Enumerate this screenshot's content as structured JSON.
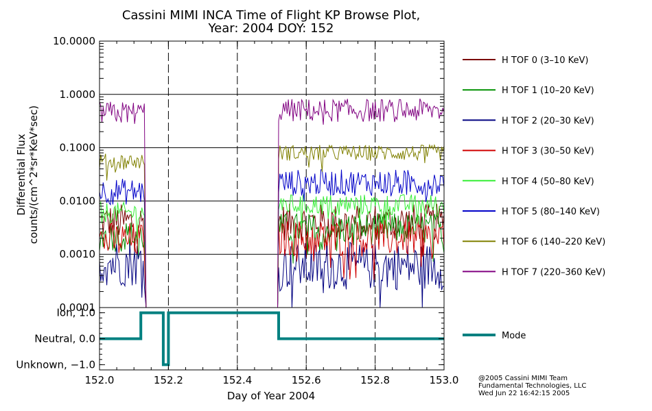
{
  "chart_data": {
    "type": "line",
    "title": "Cassini MIMI INCA Time of Flight KP Browse Plot,",
    "subtitle": "Year: 2004 DOY: 152",
    "xlabel": "Day of Year 2004",
    "xlim": [
      152.0,
      153.0
    ],
    "xticks": [
      "152.0",
      "152.2",
      "152.4",
      "152.6",
      "152.8",
      "153.0"
    ],
    "x_dashed_grid": [
      152.2,
      152.4,
      152.6,
      152.8
    ],
    "upper_panel": {
      "ylabel_line1": "Differential Flux",
      "ylabel_line2": "counts/(cm^2*sr*KeV*sec)",
      "yscale": "log",
      "ylim": [
        0.0001,
        10.0
      ],
      "yticks": [
        "10.0000",
        "1.0000",
        "0.1000",
        "0.0100",
        "0.0010",
        "0.0001"
      ],
      "grid": true,
      "data_gap": [
        152.13,
        152.52
      ],
      "series": [
        {
          "name": "H TOF 0 (3–10 KeV)",
          "color": "#7a0000",
          "level1": 0.004,
          "level2": 0.004,
          "spread": 0.35
        },
        {
          "name": "H TOF 1 (10–20 KeV)",
          "color": "#009000",
          "level1": 0.0022,
          "level2": 0.003,
          "spread": 0.3
        },
        {
          "name": "H TOF 2 (20–30 KeV)",
          "color": "#000080",
          "level1": 0.0007,
          "level2": 0.0006,
          "spread": 0.45
        },
        {
          "name": "H TOF 3 (30–50 KeV)",
          "color": "#d00000",
          "level1": 0.0018,
          "level2": 0.002,
          "spread": 0.35
        },
        {
          "name": "H TOF 4 (50–80 KeV)",
          "color": "#33ee33",
          "level1": 0.006,
          "level2": 0.0085,
          "spread": 0.2
        },
        {
          "name": "H TOF 5 (80–140 KeV)",
          "color": "#0000c8",
          "level1": 0.015,
          "level2": 0.022,
          "spread": 0.25
        },
        {
          "name": "H TOF 6 (140–220 KeV)",
          "color": "#808000",
          "level1": 0.055,
          "level2": 0.08,
          "spread": 0.15
        },
        {
          "name": "H TOF 7 (220–360 KeV)",
          "color": "#800080",
          "level1": 0.45,
          "level2": 0.5,
          "spread": 0.22
        }
      ]
    },
    "lower_panel": {
      "yticks": [
        "Ion, 1.0",
        "Neutral, 0.0",
        "Unknown, −1.0"
      ],
      "ylim": [
        -1.2,
        1.2
      ],
      "series": [
        {
          "name": "Mode",
          "color": "#008080",
          "x": [
            152.0,
            152.12,
            152.12,
            152.185,
            152.185,
            152.2,
            152.2,
            152.52,
            152.52,
            153.0
          ],
          "y": [
            0,
            0,
            1,
            1,
            -1,
            -1,
            1,
            1,
            0,
            0
          ]
        }
      ]
    }
  },
  "footer": {
    "line1": "@2005 Cassini MIMI Team",
    "line2": "Fundamental Technologies, LLC",
    "line3": "Wed Jun 22 16:42:15 2005"
  }
}
